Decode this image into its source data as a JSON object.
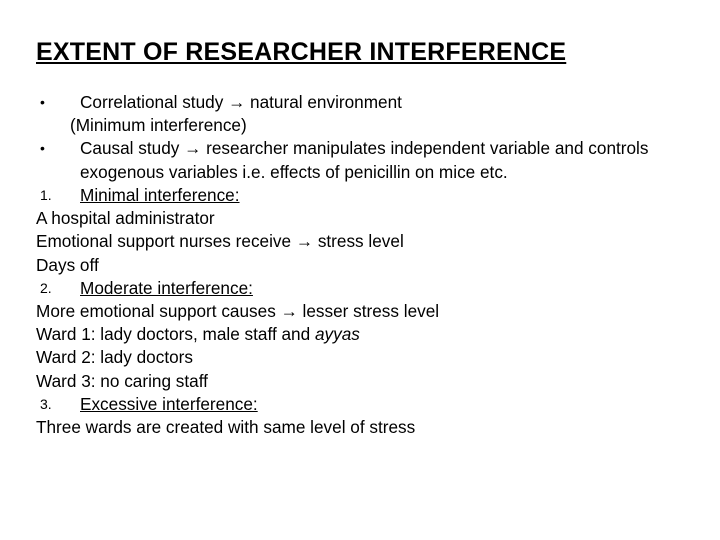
{
  "title": "EXTENT OF RESEARCHER INTERFERENCE",
  "bullet1": "Correlational study → natural environment",
  "indent1": "(Minimum interference)",
  "bullet2": "Causal study → researcher manipulates independent variable and controls exogenous variables i.e. effects of penicillin on mice etc.",
  "num1_marker": "1.",
  "num1_text": "Minimal interference:",
  "line1": "A hospital administrator",
  "line2": "Emotional support nurses receive → stress level",
  "line3": "Days off",
  "num2_marker": "2.",
  "num2_text": "Moderate interference:",
  "line4": "More emotional support causes → lesser stress level",
  "line5a": "Ward 1: lady doctors, male staff and ",
  "line5b": "ayyas",
  "line6": "Ward 2: lady doctors",
  "line7": "Ward 3: no caring staff",
  "num3_marker": "3.",
  "num3_text": "Excessive interference:",
  "line8": "Three wards are created with same level of stress",
  "colors": {
    "background": "#ffffff",
    "text": "#000000"
  },
  "fontsize_title": 25,
  "fontsize_body": 17.2
}
